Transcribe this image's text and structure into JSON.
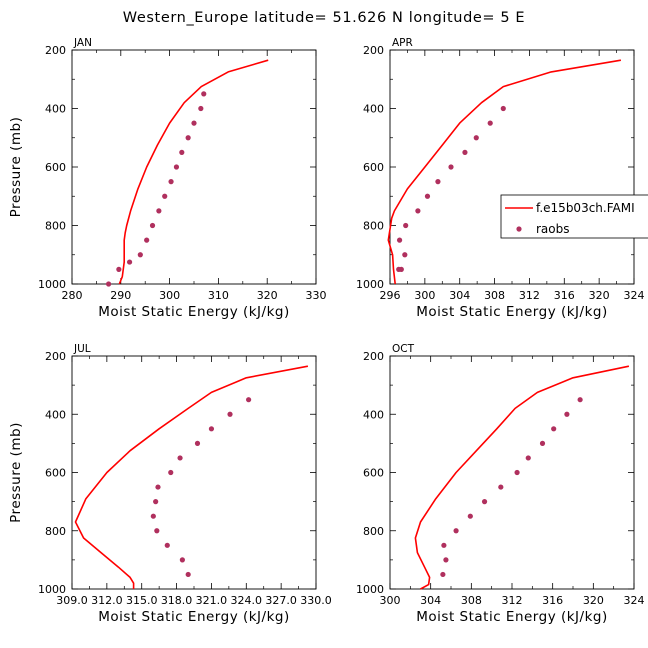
{
  "title": "Western_Europe  latitude= 51.626 N longitude= 5 E",
  "colors": {
    "model": "#ff0000",
    "obs": "#b0305e"
  },
  "legend": {
    "model_label": "f.e15b03ch.FAMI",
    "obs_label": "raobs"
  },
  "chart_data": [
    {
      "type": "scatter",
      "panel_label": "JAN",
      "xlabel": "Moist Static Energy (kJ/kg)",
      "ylabel": "Pressure (mb)",
      "xlim": [
        280,
        330
      ],
      "ylim": [
        1000,
        200
      ],
      "x_ticks": [
        280,
        290,
        300,
        310,
        320,
        330
      ],
      "x_tick_labels": [
        "280",
        "290",
        "300",
        "310",
        "320",
        "330"
      ],
      "y_ticks": [
        200,
        400,
        600,
        800,
        1000
      ],
      "y_tick_labels": [
        "200",
        "400",
        "600",
        "800",
        "1000"
      ],
      "series": [
        {
          "name": "f.e15b03ch.FAMI",
          "kind": "line",
          "x": [
            320.2,
            312.0,
            306.5,
            303.0,
            300.0,
            297.5,
            295.3,
            293.5,
            292.0,
            291.2,
            290.9,
            290.7,
            290.7,
            290.7,
            290.3,
            289.7
          ],
          "y": [
            235,
            275,
            325,
            380,
            450,
            525,
            600,
            675,
            750,
            800,
            825,
            850,
            875,
            925,
            975,
            1000
          ]
        },
        {
          "name": "raobs",
          "kind": "points",
          "x": [
            307.0,
            306.4,
            305.0,
            303.8,
            302.5,
            301.4,
            300.3,
            299.0,
            297.8,
            296.5,
            295.3,
            294.0,
            291.8,
            289.6,
            287.5
          ],
          "y": [
            350,
            400,
            450,
            500,
            550,
            600,
            650,
            700,
            750,
            800,
            850,
            900,
            925,
            950,
            1000
          ]
        }
      ]
    },
    {
      "type": "scatter",
      "panel_label": "APR",
      "xlabel": "Moist Static Energy (kJ/kg)",
      "ylabel": "",
      "xlim": [
        296,
        324
      ],
      "ylim": [
        1000,
        200
      ],
      "x_ticks": [
        296,
        300,
        304,
        308,
        312,
        316,
        320,
        324
      ],
      "x_tick_labels": [
        "296",
        "300",
        "304",
        "308",
        "312",
        "316",
        "320",
        "324"
      ],
      "y_ticks": [
        200,
        400,
        600,
        800,
        1000
      ],
      "y_tick_labels": [
        "200",
        "400",
        "600",
        "800",
        "1000"
      ],
      "series": [
        {
          "name": "f.e15b03ch.FAMI",
          "kind": "line",
          "x": [
            322.5,
            314.5,
            309.0,
            306.5,
            304.0,
            302.0,
            300.0,
            298.0,
            296.5,
            296.2,
            295.8,
            296.3,
            296.4,
            296.6
          ],
          "y": [
            235,
            275,
            325,
            380,
            450,
            525,
            600,
            675,
            750,
            775,
            850,
            900,
            950,
            1000
          ]
        },
        {
          "name": "raobs",
          "kind": "points",
          "x": [
            309.0,
            307.5,
            305.9,
            304.6,
            303.0,
            301.5,
            300.3,
            299.2,
            297.8,
            297.1,
            297.7,
            297.3,
            297.0
          ],
          "y": [
            400,
            450,
            500,
            550,
            600,
            650,
            700,
            750,
            800,
            850,
            900,
            950,
            950
          ]
        }
      ]
    },
    {
      "type": "scatter",
      "panel_label": "JUL",
      "xlabel": "Moist Static Energy (kJ/kg)",
      "ylabel": "Pressure (mb)",
      "xlim": [
        309.0,
        330.0
      ],
      "ylim": [
        1000,
        200
      ],
      "x_ticks": [
        309.0,
        312.0,
        315.0,
        318.0,
        321.0,
        324.0,
        327.0,
        330.0
      ],
      "x_tick_labels": [
        "309.0",
        "312.0",
        "315.0",
        "318.0",
        "321.0",
        "324.0",
        "327.0",
        "330.0"
      ],
      "y_ticks": [
        200,
        400,
        600,
        800,
        1000
      ],
      "y_tick_labels": [
        "200",
        "400",
        "600",
        "800",
        "1000"
      ],
      "series": [
        {
          "name": "f.e15b03ch.FAMI",
          "kind": "line",
          "x": [
            329.3,
            324.0,
            321.0,
            319.0,
            316.5,
            314.0,
            312.0,
            310.2,
            309.3,
            310.0,
            311.5,
            313.0,
            314.0,
            314.3,
            314.3
          ],
          "y": [
            235,
            275,
            325,
            380,
            450,
            525,
            600,
            690,
            770,
            825,
            875,
            925,
            960,
            980,
            1000
          ]
        },
        {
          "name": "raobs",
          "kind": "points",
          "x": [
            324.2,
            322.6,
            321.0,
            319.8,
            318.3,
            317.5,
            316.4,
            316.2,
            316.0,
            316.3,
            317.2,
            318.5,
            319.0
          ],
          "y": [
            350,
            400,
            450,
            500,
            550,
            600,
            650,
            700,
            750,
            800,
            850,
            900,
            950
          ]
        }
      ]
    },
    {
      "type": "scatter",
      "panel_label": "OCT",
      "xlabel": "Moist Static Energy (kJ/kg)",
      "ylabel": "",
      "xlim": [
        300,
        324
      ],
      "ylim": [
        1000,
        200
      ],
      "x_ticks": [
        300,
        304,
        308,
        312,
        316,
        320,
        324
      ],
      "x_tick_labels": [
        "300",
        "304",
        "308",
        "312",
        "316",
        "320",
        "324"
      ],
      "y_ticks": [
        200,
        400,
        600,
        800,
        1000
      ],
      "y_tick_labels": [
        "200",
        "400",
        "600",
        "800",
        "1000"
      ],
      "series": [
        {
          "name": "f.e15b03ch.FAMI",
          "kind": "line",
          "x": [
            323.5,
            318.0,
            314.5,
            312.3,
            310.5,
            308.5,
            306.5,
            304.5,
            303.0,
            302.5,
            302.7,
            303.4,
            303.9,
            303.8,
            303.0
          ],
          "y": [
            235,
            275,
            325,
            380,
            450,
            525,
            600,
            690,
            770,
            825,
            875,
            925,
            960,
            985,
            1000
          ]
        },
        {
          "name": "raobs",
          "kind": "points",
          "x": [
            318.7,
            317.4,
            316.1,
            315.0,
            313.6,
            312.5,
            310.9,
            309.3,
            307.9,
            306.5,
            305.3,
            305.5,
            305.2
          ],
          "y": [
            350,
            400,
            450,
            500,
            550,
            600,
            650,
            700,
            750,
            800,
            850,
            900,
            950
          ]
        }
      ]
    }
  ]
}
